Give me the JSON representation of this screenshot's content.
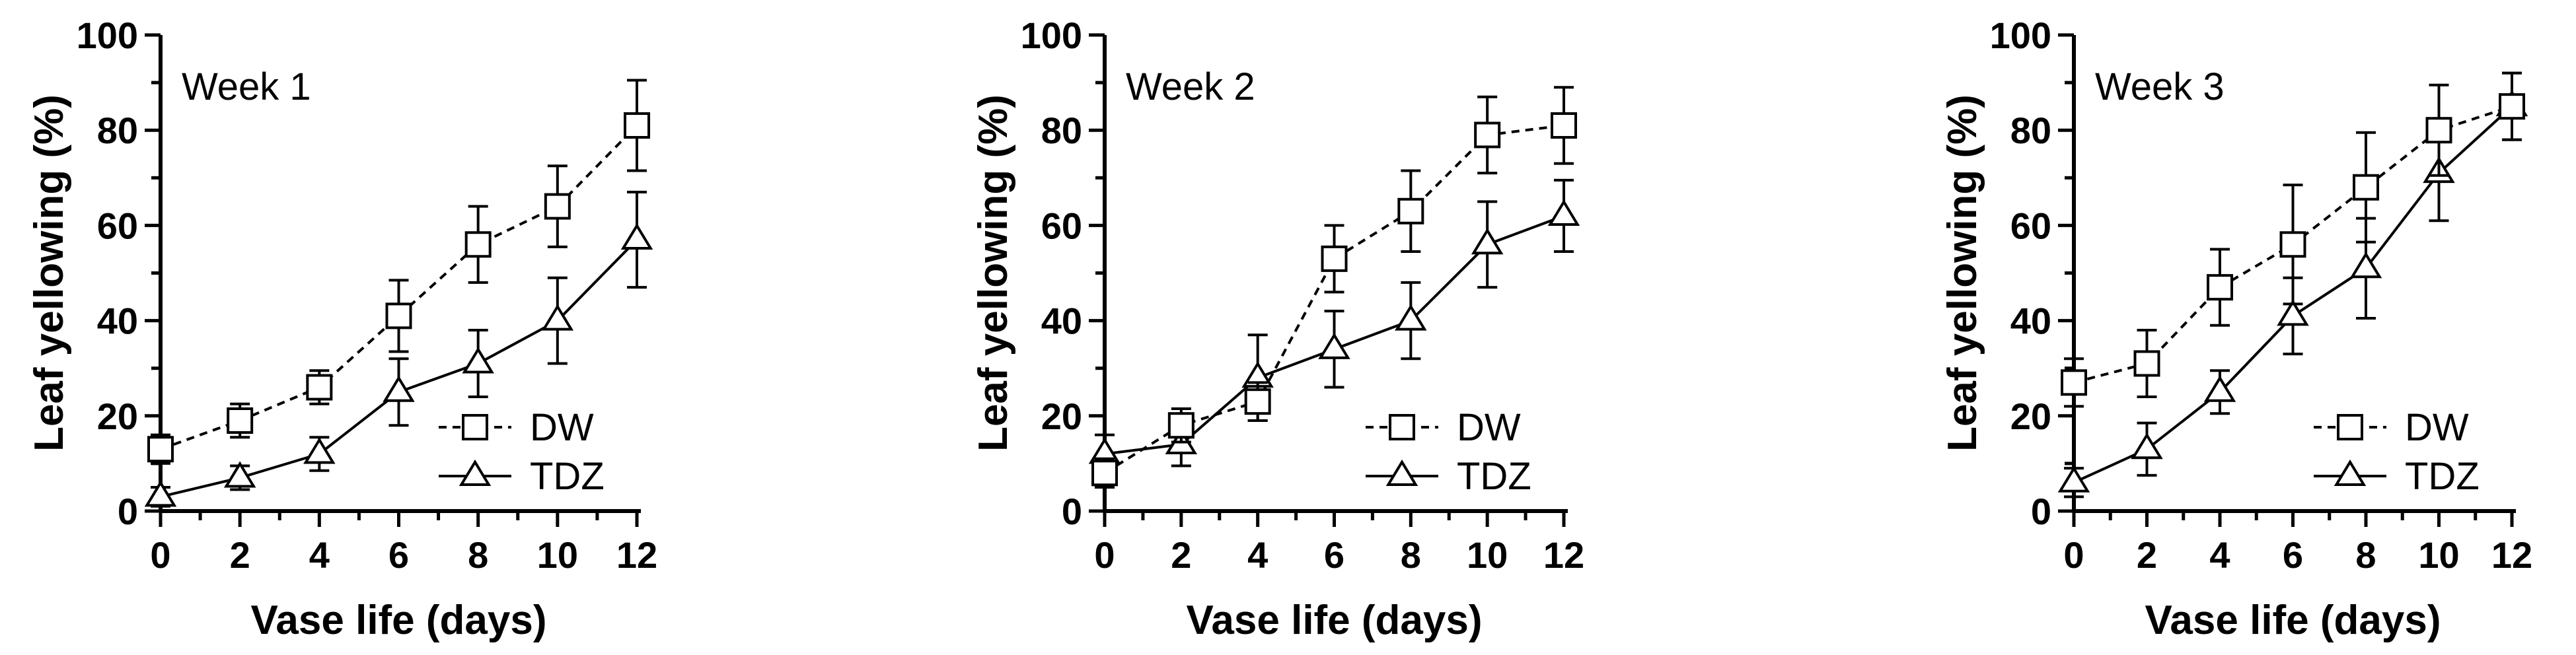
{
  "chart_data": [
    {
      "type": "line",
      "title": "Week 1",
      "xlabel": "Vase life (days)",
      "ylabel": "Leaf yellowing (%)",
      "x": [
        0,
        2,
        4,
        6,
        8,
        10,
        12
      ],
      "xlim": [
        0,
        12
      ],
      "ylim": [
        0,
        100
      ],
      "xticks": [
        "0",
        "2",
        "4",
        "6",
        "8",
        "10",
        "12"
      ],
      "yticks": [
        "0",
        "20",
        "40",
        "60",
        "80",
        "100"
      ],
      "legend_position": "bottom-right",
      "series": [
        {
          "name": "DW",
          "marker": "square",
          "line": "dashed",
          "values": [
            13,
            19,
            26,
            41,
            56,
            64,
            81
          ],
          "errors": [
            3,
            3.5,
            3.5,
            7.5,
            8,
            8.5,
            9.5
          ]
        },
        {
          "name": "TDZ",
          "marker": "triangle",
          "line": "solid",
          "values": [
            3,
            7,
            12,
            25,
            31,
            40,
            57
          ],
          "errors": [
            2,
            2.5,
            3.5,
            7,
            7,
            9,
            10
          ]
        }
      ]
    },
    {
      "type": "line",
      "title": "Week 2",
      "xlabel": "Vase life (days)",
      "ylabel": "Leaf yellowing (%)",
      "x": [
        0,
        2,
        4,
        6,
        8,
        10,
        12
      ],
      "xlim": [
        0,
        12
      ],
      "ylim": [
        0,
        100
      ],
      "xticks": [
        "0",
        "2",
        "4",
        "6",
        "8",
        "10",
        "12"
      ],
      "yticks": [
        "0",
        "20",
        "40",
        "60",
        "80",
        "100"
      ],
      "legend_position": "bottom-right",
      "series": [
        {
          "name": "DW",
          "marker": "square",
          "line": "dashed",
          "values": [
            8,
            18,
            23,
            53,
            63,
            79,
            81
          ],
          "errors": [
            3,
            3.5,
            4,
            7,
            8.5,
            8,
            8
          ]
        },
        {
          "name": "TDZ",
          "marker": "triangle",
          "line": "solid",
          "values": [
            12,
            14,
            28,
            34,
            40,
            56,
            62
          ],
          "errors": [
            4,
            4.5,
            9,
            8,
            8,
            9,
            7.5
          ]
        }
      ]
    },
    {
      "type": "line",
      "title": "Week 3",
      "xlabel": "Vase life (days)",
      "ylabel": "Leaf yellowing (%)",
      "x": [
        0,
        2,
        4,
        6,
        8,
        10,
        12
      ],
      "xlim": [
        0,
        12
      ],
      "ylim": [
        0,
        100
      ],
      "xticks": [
        "0",
        "2",
        "4",
        "6",
        "8",
        "10",
        "12"
      ],
      "yticks": [
        "0",
        "20",
        "40",
        "60",
        "80",
        "100"
      ],
      "legend_position": "bottom-right",
      "series": [
        {
          "name": "DW",
          "marker": "square",
          "line": "dashed",
          "values": [
            27,
            31,
            47,
            56,
            68,
            80,
            85
          ],
          "errors": [
            5,
            7,
            8,
            12.5,
            11.5,
            9.5,
            7
          ]
        },
        {
          "name": "TDZ",
          "marker": "triangle",
          "line": "solid",
          "values": [
            6,
            13,
            25,
            41,
            51,
            71,
            85
          ],
          "errors": [
            3,
            5.5,
            4.5,
            8,
            10.5,
            10,
            7
          ]
        }
      ]
    }
  ]
}
